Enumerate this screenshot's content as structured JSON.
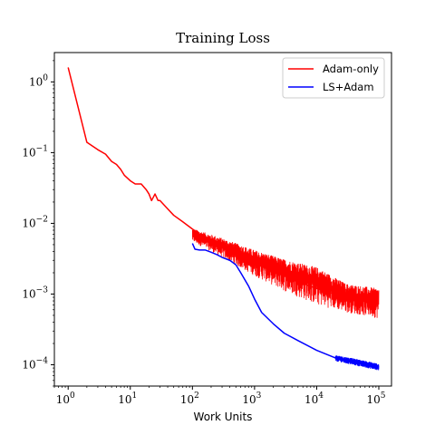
{
  "chart_data": {
    "type": "line",
    "title": "Training Loss",
    "xlabel": "Work Units",
    "ylabel": "",
    "xscale": "log",
    "yscale": "log",
    "xlim": [
      0.6,
      160000
    ],
    "ylim": [
      5e-05,
      2.6
    ],
    "x_ticks": [
      {
        "value": 1,
        "base": "10",
        "exp": "0"
      },
      {
        "value": 10,
        "base": "10",
        "exp": "1"
      },
      {
        "value": 100,
        "base": "10",
        "exp": "2"
      },
      {
        "value": 1000,
        "base": "10",
        "exp": "3"
      },
      {
        "value": 10000,
        "base": "10",
        "exp": "4"
      },
      {
        "value": 100000,
        "base": "10",
        "exp": "5"
      }
    ],
    "y_ticks": [
      {
        "value": 1,
        "base": "10",
        "exp": "0"
      },
      {
        "value": 0.1,
        "base": "10",
        "exp": "−1"
      },
      {
        "value": 0.01,
        "base": "10",
        "exp": "−2"
      },
      {
        "value": 0.001,
        "base": "10",
        "exp": "−3"
      },
      {
        "value": 0.0001,
        "base": "10",
        "exp": "−4"
      }
    ],
    "grid": false,
    "legend_position": "top-right",
    "series": [
      {
        "name": "Adam-only",
        "color": "#ff0000",
        "x": [
          1,
          2,
          3,
          4,
          5,
          6,
          7,
          8,
          10,
          12,
          15,
          18,
          20,
          22,
          25,
          28,
          30,
          40,
          50,
          70,
          100,
          150,
          200,
          300,
          500,
          700,
          1000,
          2000,
          3000,
          5000,
          10000,
          20000,
          50000,
          100000
        ],
        "y": [
          1.6,
          0.14,
          0.11,
          0.095,
          0.075,
          0.068,
          0.058,
          0.048,
          0.04,
          0.036,
          0.036,
          0.03,
          0.026,
          0.021,
          0.026,
          0.021,
          0.021,
          0.016,
          0.013,
          0.0105,
          0.0083,
          0.0065,
          0.0056,
          0.0045,
          0.0036,
          0.0031,
          0.0027,
          0.0021,
          0.0018,
          0.0015,
          0.0012,
          0.001,
          0.00088,
          0.00082
        ],
        "noise_band": {
          "x": [
            100,
            300,
            1000,
            3000,
            10000,
            30000,
            100000
          ],
          "low": [
            0.0055,
            0.0033,
            0.0018,
            0.0011,
            0.0007,
            0.00055,
            0.00045
          ],
          "high": [
            0.0085,
            0.0062,
            0.0042,
            0.0031,
            0.0024,
            0.0014,
            0.0012
          ]
        }
      },
      {
        "name": "LS+Adam",
        "color": "#0000ff",
        "x": [
          100,
          110,
          130,
          160,
          200,
          250,
          300,
          400,
          500,
          600,
          800,
          1000,
          1300,
          2000,
          3000,
          5000,
          10000,
          20000,
          50000,
          100000
        ],
        "y": [
          0.0052,
          0.0043,
          0.0042,
          0.0042,
          0.0039,
          0.0036,
          0.0033,
          0.003,
          0.0026,
          0.002,
          0.0013,
          0.00085,
          0.00055,
          0.00038,
          0.00028,
          0.00022,
          0.00016,
          0.000125,
          0.000105,
          9.2e-05
        ],
        "noise_band": {
          "x": [
            20000,
            50000,
            100000
          ],
          "low": [
            0.000112,
            9.4e-05,
            8.3e-05
          ],
          "high": [
            0.000138,
            0.000118,
            0.000104
          ]
        }
      }
    ]
  }
}
